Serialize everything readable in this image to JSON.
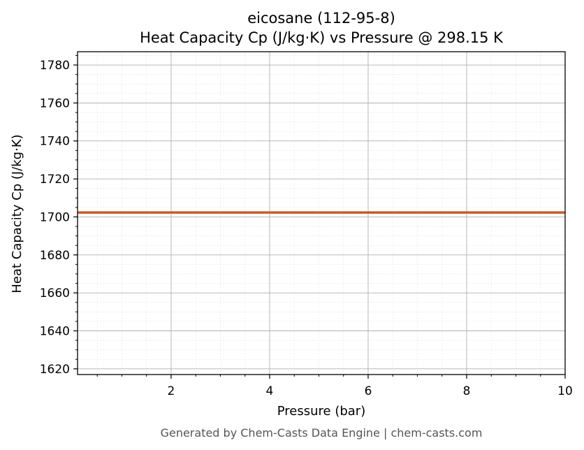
{
  "chart_data": {
    "type": "line",
    "title": "eicosane (112-95-8)",
    "subtitle": "Heat Capacity Cp (J/kg·K) vs Pressure @ 298.15 K",
    "xlabel": "Pressure (bar)",
    "ylabel": "Heat Capacity Cp (J/kg·K)",
    "xlim": [
      0.1,
      10
    ],
    "ylim": [
      1617,
      1787
    ],
    "xticks": [
      2,
      4,
      6,
      8,
      10
    ],
    "yticks": [
      1620,
      1640,
      1660,
      1680,
      1700,
      1720,
      1740,
      1760,
      1780
    ],
    "grid": true,
    "series": [
      {
        "x": [
          0.1,
          1,
          2,
          3,
          4,
          5,
          6,
          7,
          8,
          9,
          10
        ],
        "y": [
          1702.3,
          1702.3,
          1702.3,
          1702.3,
          1702.3,
          1702.3,
          1702.3,
          1702.3,
          1702.3,
          1702.3,
          1702.3
        ],
        "color": "#c85a2e"
      }
    ],
    "footer": "Generated by Chem-Casts Data Engine | chem-casts.com"
  }
}
